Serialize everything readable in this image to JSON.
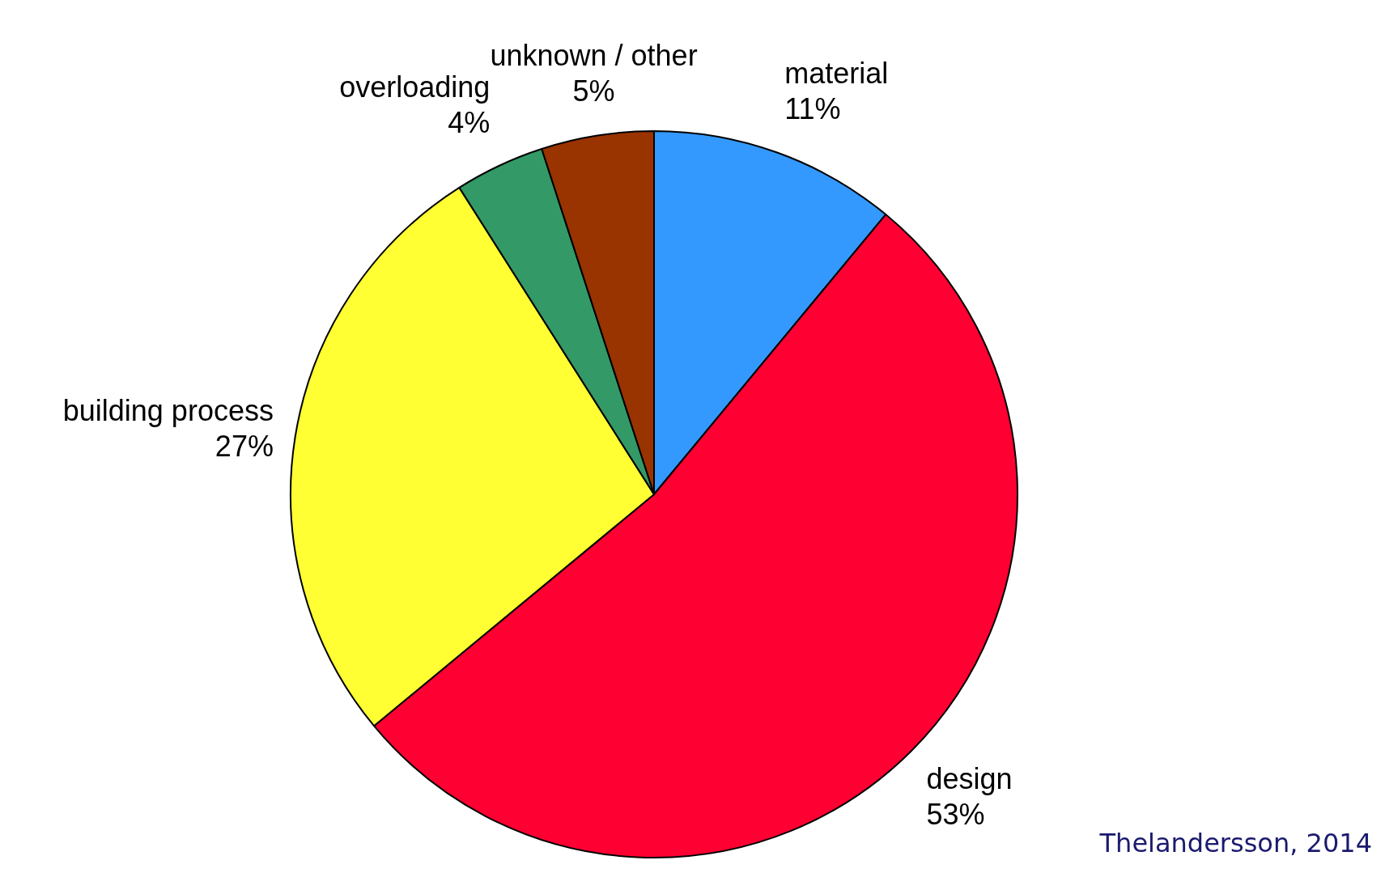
{
  "chart_data": {
    "type": "pie",
    "categories": [
      "material",
      "design",
      "building process",
      "overloading",
      "unknown / other"
    ],
    "values": [
      11,
      53,
      27,
      4,
      5
    ],
    "colors": [
      "#3399ff",
      "#ff0033",
      "#ffff33",
      "#339966",
      "#993300"
    ],
    "value_labels": [
      "11%",
      "53%",
      "27%",
      "4%",
      "5%"
    ],
    "legend": false,
    "annotations": [
      "Thelandersson, 2014"
    ]
  }
}
